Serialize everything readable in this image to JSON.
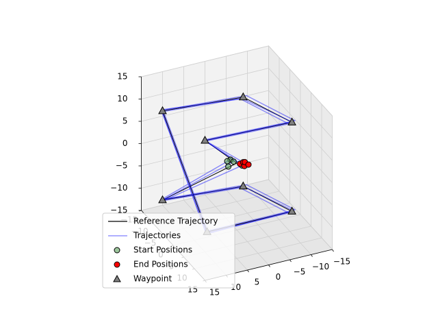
{
  "chart_data": {
    "type": "line3d",
    "xlim": [
      -15,
      15
    ],
    "ylim": [
      -15,
      15
    ],
    "zlim": [
      -15,
      15
    ],
    "xticks": [
      {
        "value": -15,
        "label": "−15"
      },
      {
        "value": -10,
        "label": "−10"
      },
      {
        "value": -5,
        "label": "−5"
      },
      0,
      5,
      10,
      15
    ],
    "yticks": [
      {
        "value": -15,
        "label": "−15"
      },
      {
        "value": -10,
        "label": "−10"
      },
      {
        "value": -5,
        "label": "−5"
      },
      0,
      5,
      10,
      15
    ],
    "zticks": [
      {
        "value": -15,
        "label": "−15"
      },
      {
        "value": -10,
        "label": "−10"
      },
      {
        "value": -5,
        "label": "−5"
      },
      0,
      5,
      10,
      15
    ],
    "grid": true,
    "legend": "lower left",
    "series": [
      {
        "name": "Reference Trajectory",
        "type": "line",
        "color": "#000000",
        "lines": [
          {
            "x": [
              0,
              -9,
              -7,
              6,
              6,
              -9,
              -7,
              6,
              5,
              0
            ],
            "y": [
              0,
              13,
              -5,
              -10,
              10,
              13,
              -5,
              -10,
              10,
              0
            ],
            "z": [
              0,
              -10,
              -10,
              -10,
              -10,
              10,
              10,
              10,
              10,
              0
            ]
          }
        ]
      },
      {
        "name": "Trajectories",
        "type": "line",
        "color": "#0000ff",
        "lines": [
          {
            "x": [
              -1,
              -8.5,
              -6.5,
              6.5,
              6.5,
              -8.5,
              -6.5,
              6.5,
              5.5,
              0.5
            ],
            "y": [
              1,
              13.5,
              -5.5,
              -10.5,
              10.5,
              13.5,
              -5.5,
              -10.5,
              10.5,
              -0.5
            ],
            "z": [
              0.5,
              -9.5,
              -9.5,
              -9.5,
              -9.5,
              10.5,
              10.5,
              10.5,
              10.5,
              0
            ]
          },
          {
            "x": [
              0.5,
              -9.5,
              -7.5,
              5.5,
              5.5,
              -9.5,
              -7.5,
              5.5,
              4.5,
              1
            ],
            "y": [
              -1,
              12.5,
              -4.5,
              -9.5,
              9.5,
              12.5,
              -4.5,
              -9.5,
              9.5,
              -1
            ],
            "z": [
              -0.5,
              -10.5,
              -10.5,
              -10.5,
              -10.5,
              9.5,
              9.5,
              9.5,
              9.5,
              0.5
            ]
          },
          {
            "x": [
              -0.5,
              -8.8,
              -7.2,
              6.2,
              6.2,
              -9.2,
              -6.8,
              6.3,
              5.2,
              1.2
            ],
            "y": [
              0.5,
              12.8,
              -5.2,
              -10.2,
              10.3,
              13.2,
              -4.8,
              -9.8,
              10.2,
              -1.2
            ],
            "z": [
              0.2,
              -9.8,
              -10.2,
              -9.8,
              -10.3,
              10.2,
              9.8,
              10.3,
              10.1,
              -0.3
            ]
          }
        ]
      },
      {
        "name": "Start Positions",
        "type": "scatter",
        "marker": "circle",
        "color": "#5aa05a",
        "x": [
          -1,
          0.5,
          -0.5,
          -1.5,
          0
        ],
        "y": [
          1,
          -1,
          0.5,
          1.5,
          2
        ],
        "z": [
          0.5,
          -0.5,
          0.2,
          0,
          -0.3
        ]
      },
      {
        "name": "End Positions",
        "type": "scatter",
        "marker": "circle",
        "color": "#ff0000",
        "x": [
          0.5,
          1,
          1.2,
          0.8,
          1.5
        ],
        "y": [
          -0.5,
          -1,
          -1.2,
          -1.5,
          -2
        ],
        "z": [
          0,
          0.5,
          -0.3,
          0.3,
          0
        ]
      },
      {
        "name": "Waypoint",
        "type": "scatter",
        "marker": "triangle",
        "color": "#808080",
        "x": [
          -9,
          -7,
          6,
          6,
          -9,
          -7,
          6,
          5
        ],
        "y": [
          13,
          -5,
          -10,
          10,
          13,
          -5,
          -10,
          10
        ],
        "z": [
          -10,
          -10,
          -10,
          -10,
          10,
          10,
          10,
          10
        ]
      }
    ]
  }
}
